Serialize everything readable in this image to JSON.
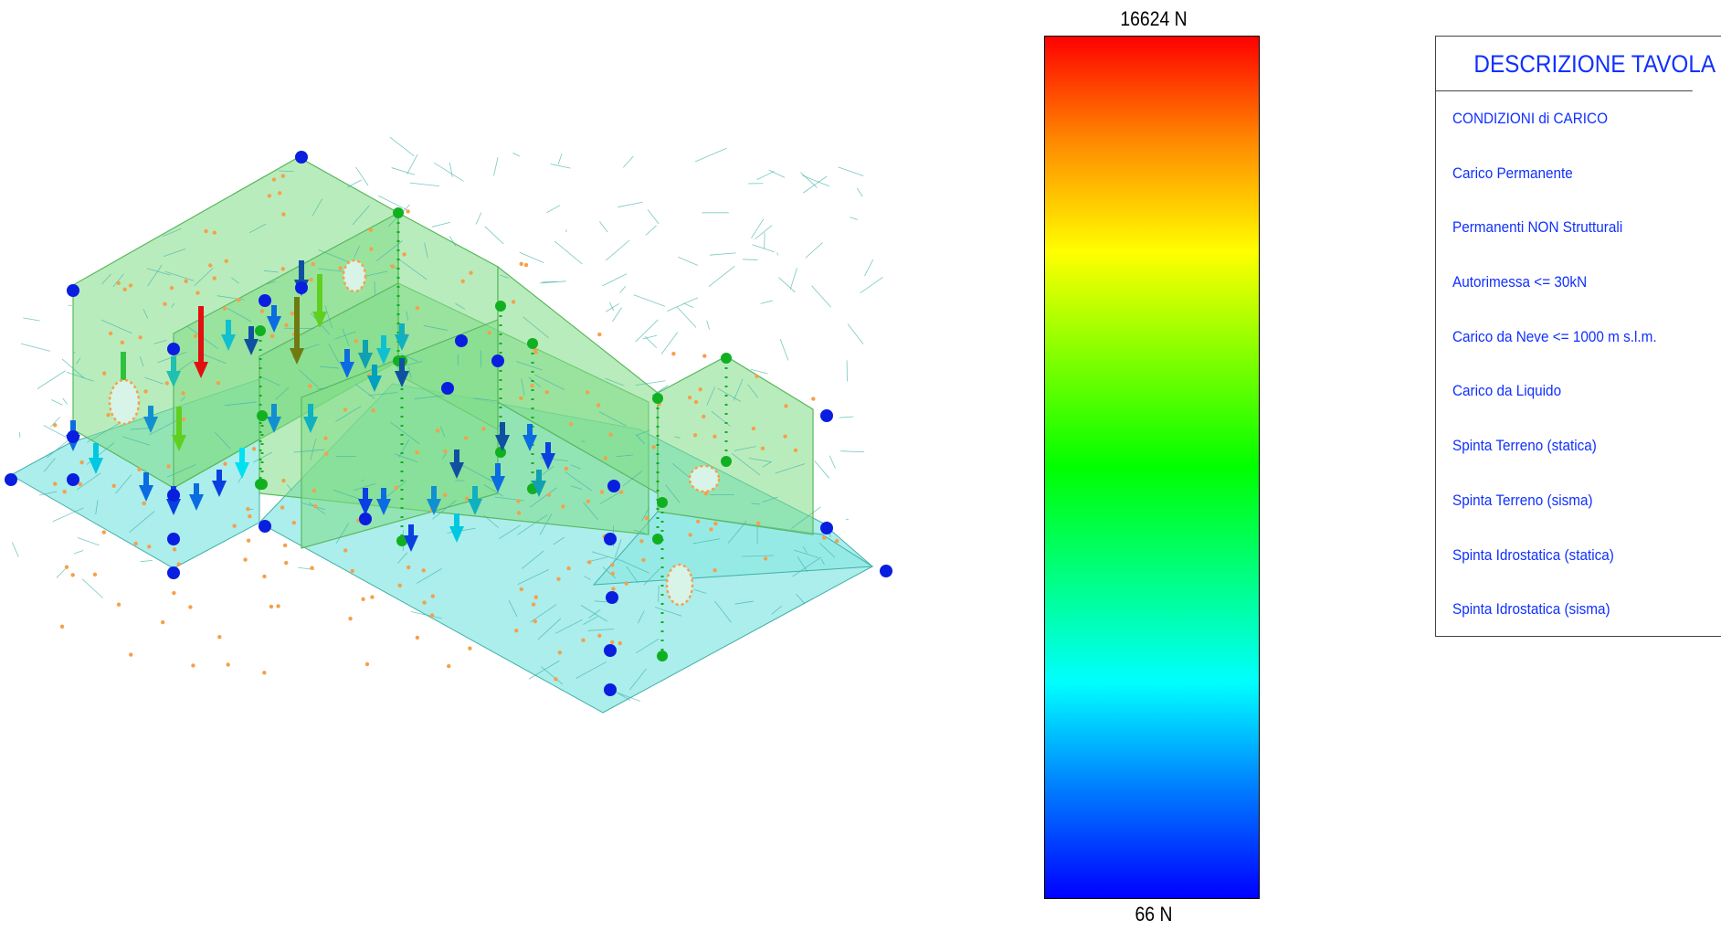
{
  "colorbar": {
    "max_label": "16624 N",
    "min_label": "66 N",
    "colors": [
      "#ff0000",
      "#ff8800",
      "#ffff00",
      "#00ff00",
      "#00ffff",
      "#0080ff",
      "#0000ff"
    ]
  },
  "legend": {
    "title": "DESCRIZIONE TAVOLA",
    "items": [
      "CONDIZIONI di CARICO",
      "Carico Permanente",
      "Permanenti NON Strutturali",
      "Autorimessa <= 30kN",
      "Carico da Neve <= 1000 m s.l.m.",
      "Carico da Liquido",
      "Spinta Terreno (statica)",
      "Spinta Terreno (sisma)",
      "Spinta Idrostatica (statica)",
      "Spinta Idrostatica (sisma)"
    ],
    "text_color": "#1030ff"
  },
  "model": {
    "slab_color": "#8fe8e4",
    "wall_color": "#7fdc86",
    "mesh_line_color": "#3fb0a8",
    "node_color": "#f5a04a",
    "constraint_node_color": "#0a1ee0",
    "column_node_color": "#10b020"
  }
}
